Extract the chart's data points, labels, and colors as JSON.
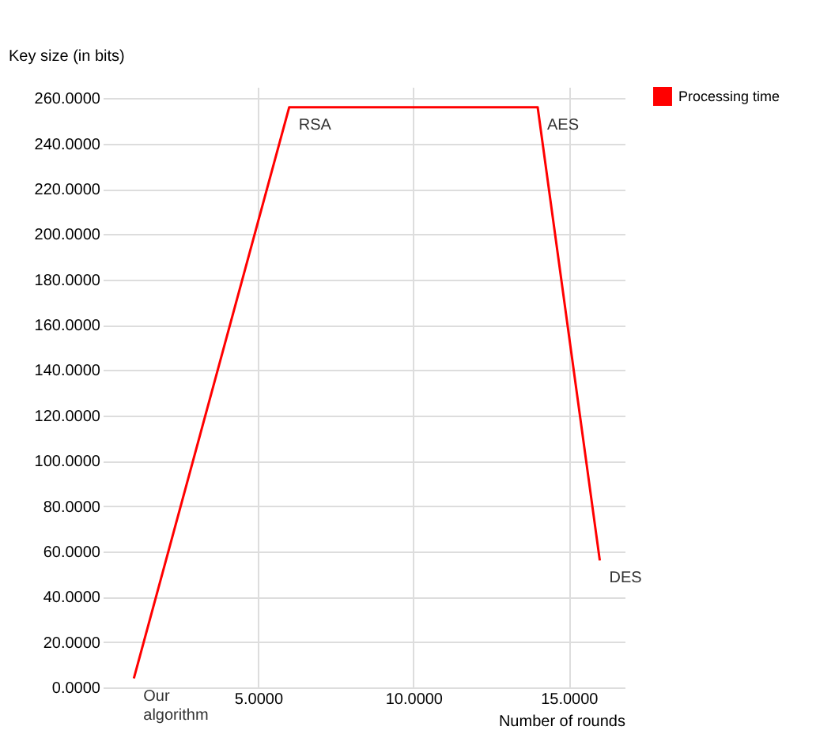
{
  "chart_data": {
    "type": "line",
    "ylabel": "Key size (in bits)",
    "xlabel": "Number of rounds",
    "x": [
      1,
      6,
      14,
      16
    ],
    "series": [
      {
        "name": "Processing time",
        "color": "#ff0000",
        "values": [
          4,
          256,
          256,
          56
        ]
      }
    ],
    "xlim": [
      0,
      16.8
    ],
    "xticks": [
      {
        "value": 5,
        "label": "5.0000"
      },
      {
        "value": 10,
        "label": "10.0000"
      },
      {
        "value": 15,
        "label": "15.0000"
      }
    ],
    "ylim": [
      0,
      265
    ],
    "yticks": [
      {
        "value": 0,
        "label": "0.0000"
      },
      {
        "value": 20,
        "label": "20.0000"
      },
      {
        "value": 40,
        "label": "40.0000"
      },
      {
        "value": 60,
        "label": "60.0000"
      },
      {
        "value": 80,
        "label": "80.0000"
      },
      {
        "value": 100,
        "label": "100.0000"
      },
      {
        "value": 120,
        "label": "120.0000"
      },
      {
        "value": 140,
        "label": "140.0000"
      },
      {
        "value": 160,
        "label": "160.0000"
      },
      {
        "value": 180,
        "label": "180.0000"
      },
      {
        "value": 200,
        "label": "200.0000"
      },
      {
        "value": 220,
        "label": "220.0000"
      },
      {
        "value": 240,
        "label": "240.0000"
      },
      {
        "value": 260,
        "label": "260.0000"
      }
    ],
    "annotations": [
      {
        "text": "Our algorithm",
        "x": 1,
        "y": 4
      },
      {
        "text": "RSA",
        "x": 6,
        "y": 256
      },
      {
        "text": "AES",
        "x": 14,
        "y": 256
      },
      {
        "text": "DES",
        "x": 16,
        "y": 56
      }
    ],
    "grid": true,
    "legend": "top right",
    "marker": "none",
    "line_style": "solid"
  }
}
